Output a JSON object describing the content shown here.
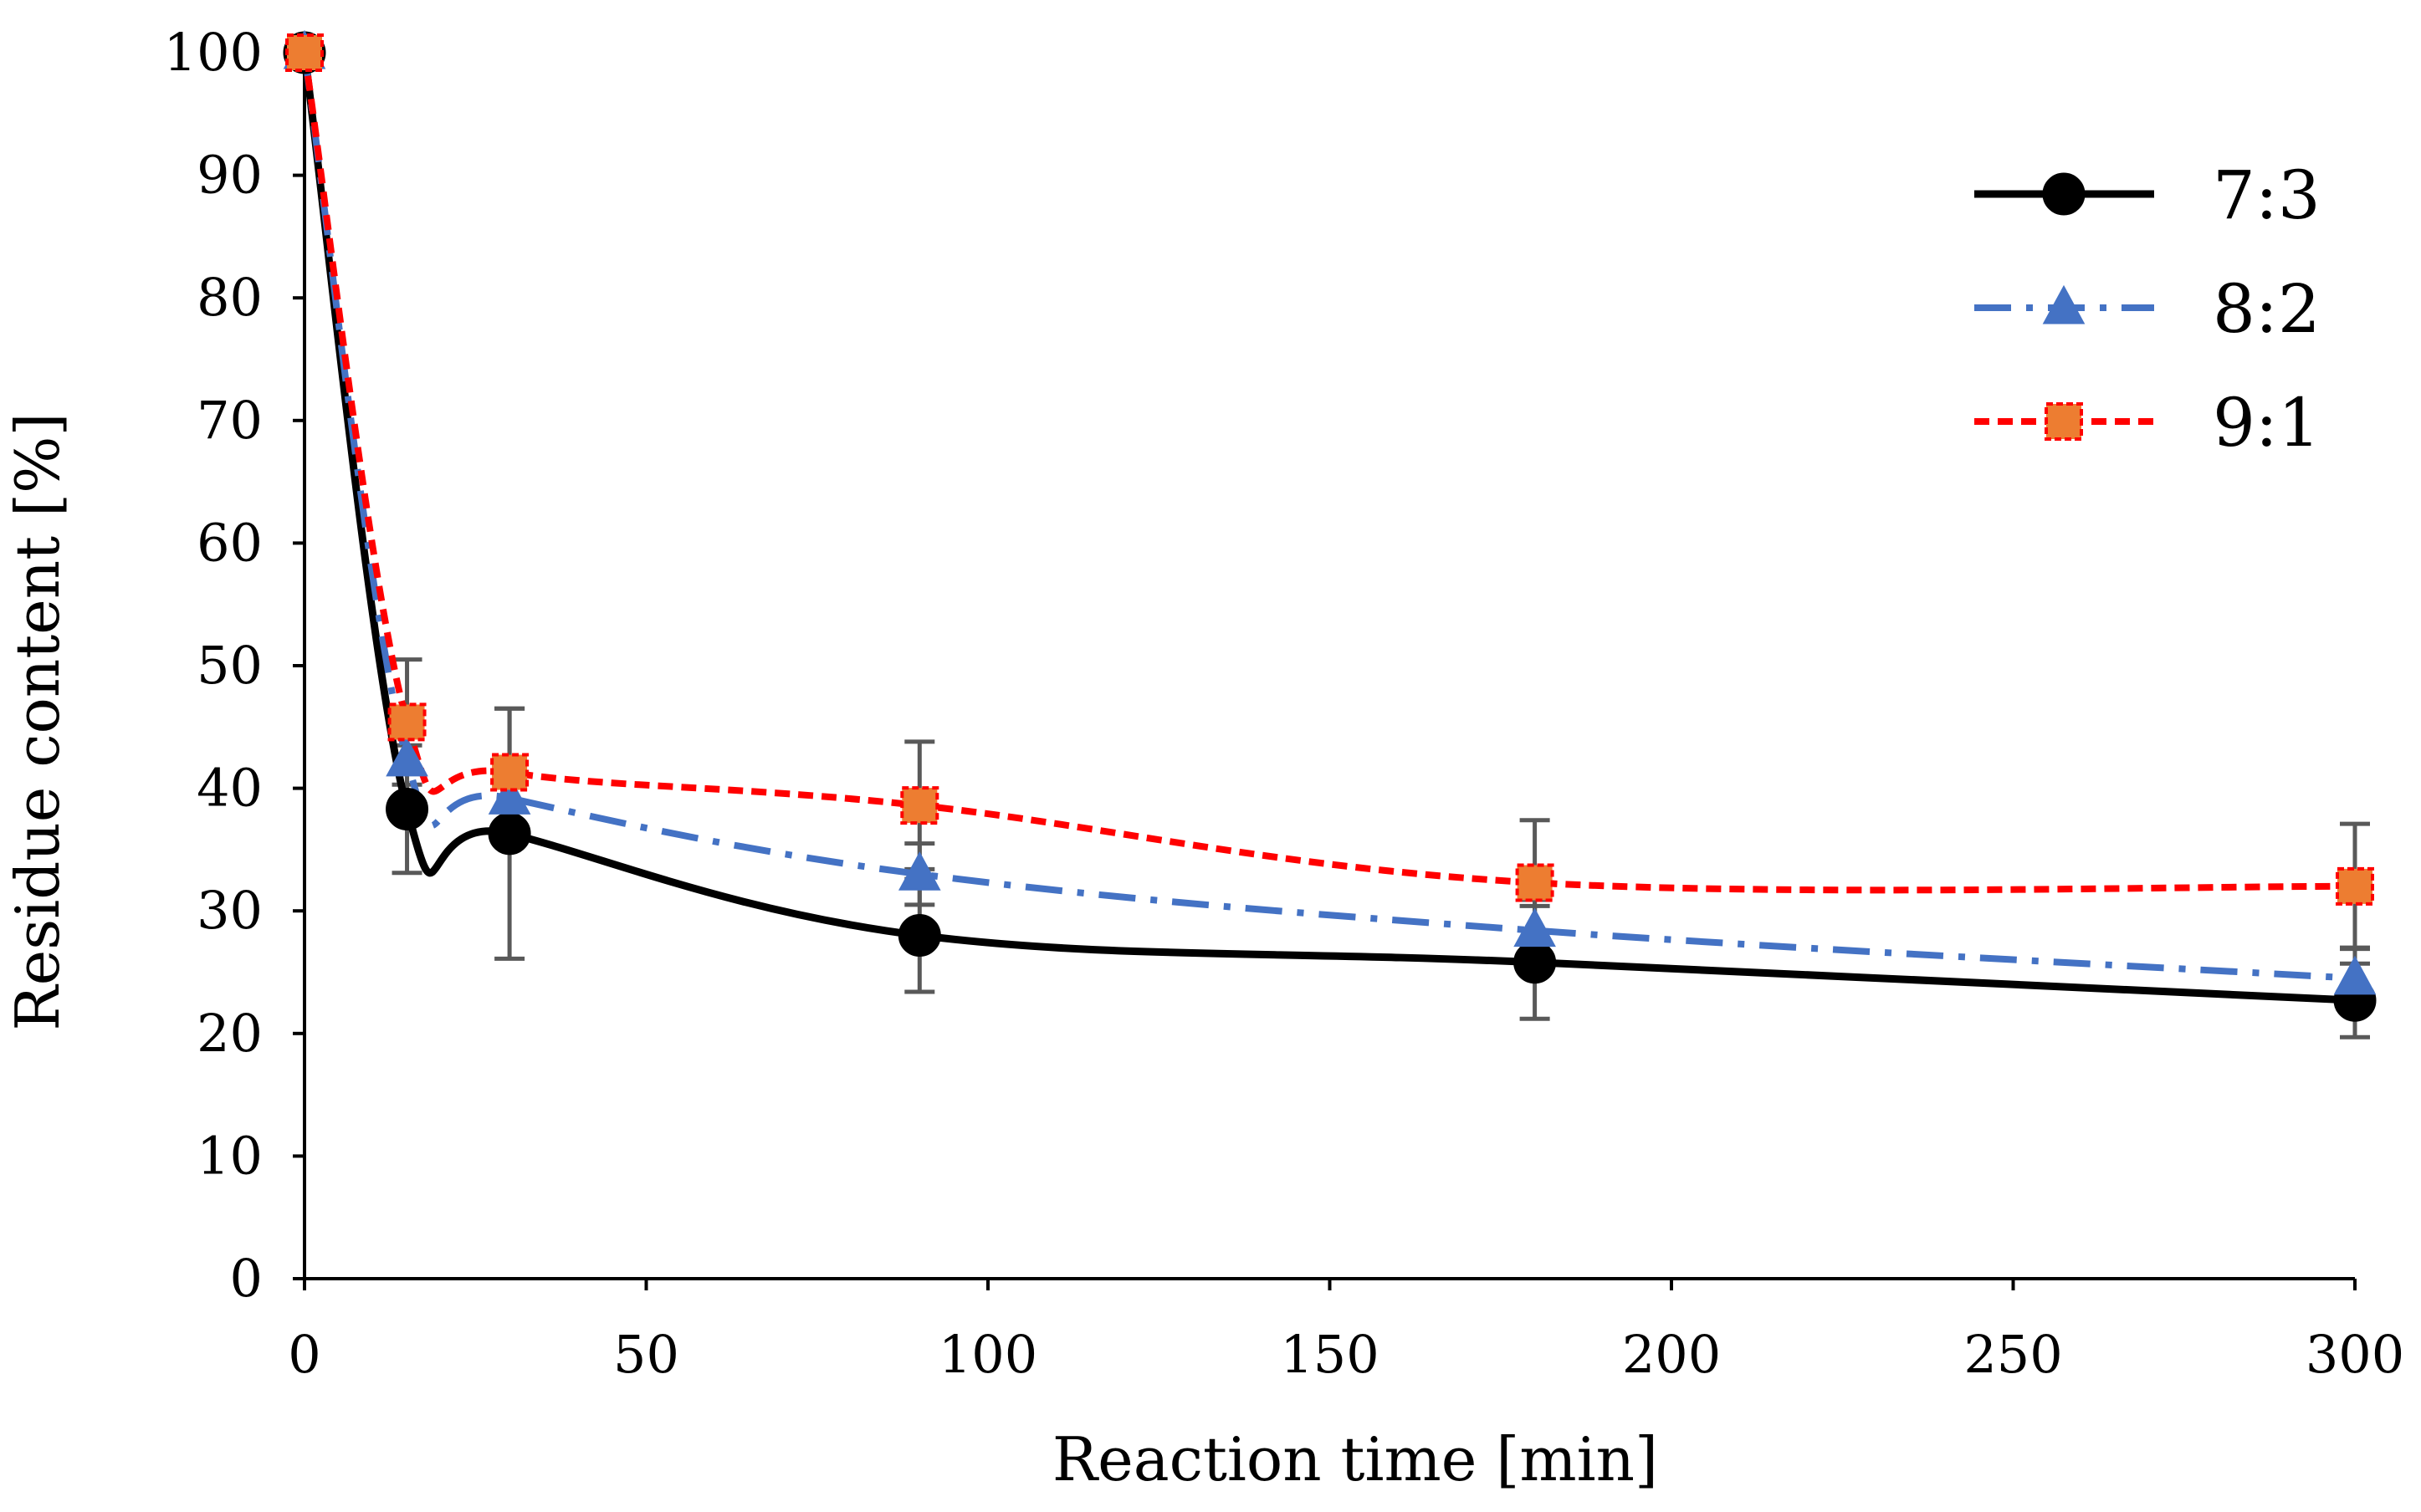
{
  "chart_data": {
    "type": "line",
    "title": "",
    "xlabel": "Reaction time [min]",
    "ylabel": "Residue content [%]",
    "xlim": [
      0,
      300
    ],
    "ylim": [
      0,
      100
    ],
    "xticks": [
      0,
      50,
      100,
      150,
      200,
      250,
      300
    ],
    "yticks": [
      0,
      10,
      20,
      30,
      40,
      50,
      60,
      70,
      80,
      90,
      100
    ],
    "grid": false,
    "legend_position": "top-right",
    "x": [
      0,
      15,
      30,
      90,
      180,
      300
    ],
    "series": [
      {
        "name": "7:3",
        "values": [
          100,
          38.3,
          36.3,
          28.0,
          25.8,
          22.7
        ],
        "error": [
          0,
          5.2,
          10.2,
          4.6,
          4.6,
          3.0
        ],
        "color": "#000000",
        "line_style": "solid",
        "marker": "circle"
      },
      {
        "name": "8:2",
        "values": [
          100,
          42.3,
          39.2,
          33.0,
          28.4,
          24.5
        ],
        "error": [
          0,
          0,
          0,
          2.5,
          2.5,
          2.5
        ],
        "color": "#4472C4",
        "line_style": "dash-dot",
        "marker": "triangle"
      },
      {
        "name": "9:1",
        "values": [
          100,
          45.4,
          41.3,
          38.6,
          32.3,
          32.0
        ],
        "error": [
          0,
          5.1,
          5.2,
          5.2,
          5.1,
          5.1
        ],
        "color": "#FF0000",
        "marker_fill": "#ED7D31",
        "line_style": "dotted",
        "marker": "square"
      }
    ],
    "error_bar_color": "#595959"
  }
}
